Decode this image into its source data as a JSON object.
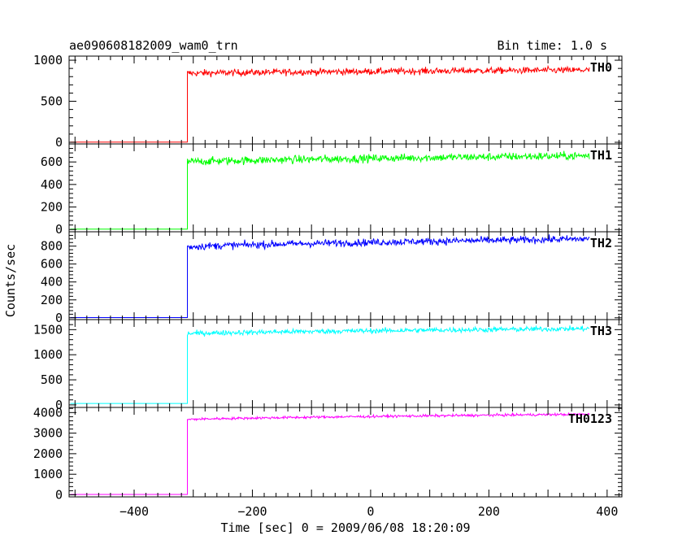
{
  "header": {
    "title": "ae090608182009_wam0_trn",
    "bin_time": "Bin time: 1.0 s"
  },
  "chart_data": {
    "type": "line",
    "xlabel": "Time [sec] 0 = 2009/06/08 18:20:09",
    "ylabel": "Counts/sec",
    "xlim": [
      -510,
      425
    ],
    "x_ticks": [
      -400,
      -200,
      0,
      200,
      400
    ],
    "x_tick_labels": [
      "−400",
      "−200",
      "0",
      "200",
      "400"
    ],
    "onset_time": -310,
    "x_end": 370,
    "series": [
      {
        "name": "TH0",
        "color": "#ff0000",
        "ylim": [
          -20,
          1050
        ],
        "y_ticks": [
          0,
          500,
          1000
        ],
        "pre_level": 3,
        "start_level": 840,
        "end_level": 880,
        "noise": 40
      },
      {
        "name": "TH1",
        "color": "#00ff00",
        "ylim": [
          -20,
          760
        ],
        "y_ticks": [
          0,
          200,
          400,
          600
        ],
        "pre_level": 3,
        "start_level": 600,
        "end_level": 655,
        "noise": 35
      },
      {
        "name": "TH2",
        "color": "#0000ff",
        "ylim": [
          -20,
          960
        ],
        "y_ticks": [
          0,
          200,
          400,
          600,
          800
        ],
        "pre_level": 3,
        "start_level": 790,
        "end_level": 880,
        "noise": 40
      },
      {
        "name": "TH3",
        "color": "#00ffff",
        "ylim": [
          -50,
          1700
        ],
        "y_ticks": [
          0,
          500,
          1000,
          1500
        ],
        "pre_level": 30,
        "start_level": 1420,
        "end_level": 1520,
        "noise": 50
      },
      {
        "name": "TH0123",
        "color": "#ff00ff",
        "ylim": [
          -100,
          4250
        ],
        "y_ticks": [
          0,
          1000,
          2000,
          3000,
          4000
        ],
        "pre_level": 20,
        "start_level": 3660,
        "end_level": 3920,
        "noise": 60
      }
    ]
  }
}
